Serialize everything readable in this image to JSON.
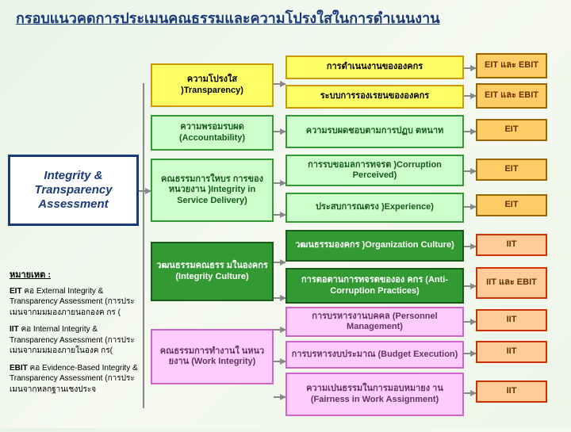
{
  "title": "กรอบแนวคดการประเมนคณธรรมและความโปรงใสในการดำเนนงาน",
  "main": "Integrity & Transparency Assessment",
  "col2": {
    "transparency": "ความโปรงใส )Transparency)",
    "accountability": "ความพรอมรบผด (Accountability)",
    "integrity_sd": "คณธรรมการใหบร การของหนวยงาน )Integrity in Service Delivery)",
    "integrity_culture": "วฒนธรรมคณธรร มในองคกร (Integrity Culture)",
    "work_integrity": "คณธรรมการทำงานใ นหนวยงาน (Work Integrity)"
  },
  "col3": {
    "org_operation": "การดำเนนงานขององคกร",
    "complaint": "ระบบการรองเรยนขององคกร",
    "responsibility": "ความรบผดชอบตามการปฏบ ตหนาท",
    "corruption": "การรบขอมลการทจรต )Corruption Perceived)",
    "experience": "ประสบการณตรง )Experience)",
    "org_culture": "วฒนธรรมองคกร )Organization Culture)",
    "anticorruption": "การตอตานการทจรตขององ คกร (Anti-Corruption Practices)",
    "personnel": "การบรหารงานบคคล (Personnel Management)",
    "budget": "การบรหารงบประมาณ (Budget Execution)",
    "fairness": "ความเปนธรรมในการมอบหมายง าน (Fairness in Work Assignment)"
  },
  "tags": {
    "eit_ebit": "EIT และ EBIT",
    "eit": "EIT",
    "iit": "IIT",
    "iit_ebit": "IIT และ EBIT"
  },
  "notes": {
    "header": "หมายเหต  :",
    "eit": "EIT คอ  External Integrity & Transparency Assessment (การประเมนจากมมมองภายนอกองค กร (",
    "iit": "IIT คอ  Internal Integrity & Transparency Assessment (การประเมนจากมมมองภายในองค กร(",
    "ebit": "EBIT คอ  Evidence-Based Integrity & Transparency Assessment (การประเมนจากหลกฐานเชงประจ"
  },
  "colors": {
    "title": "#1a3a7a",
    "yellow": "#ffff66",
    "green_light": "#ccffcc",
    "green_dark": "#339933",
    "pink": "#ffccff",
    "orange": "#ffcc66",
    "red_bg": "#ffcc99"
  }
}
